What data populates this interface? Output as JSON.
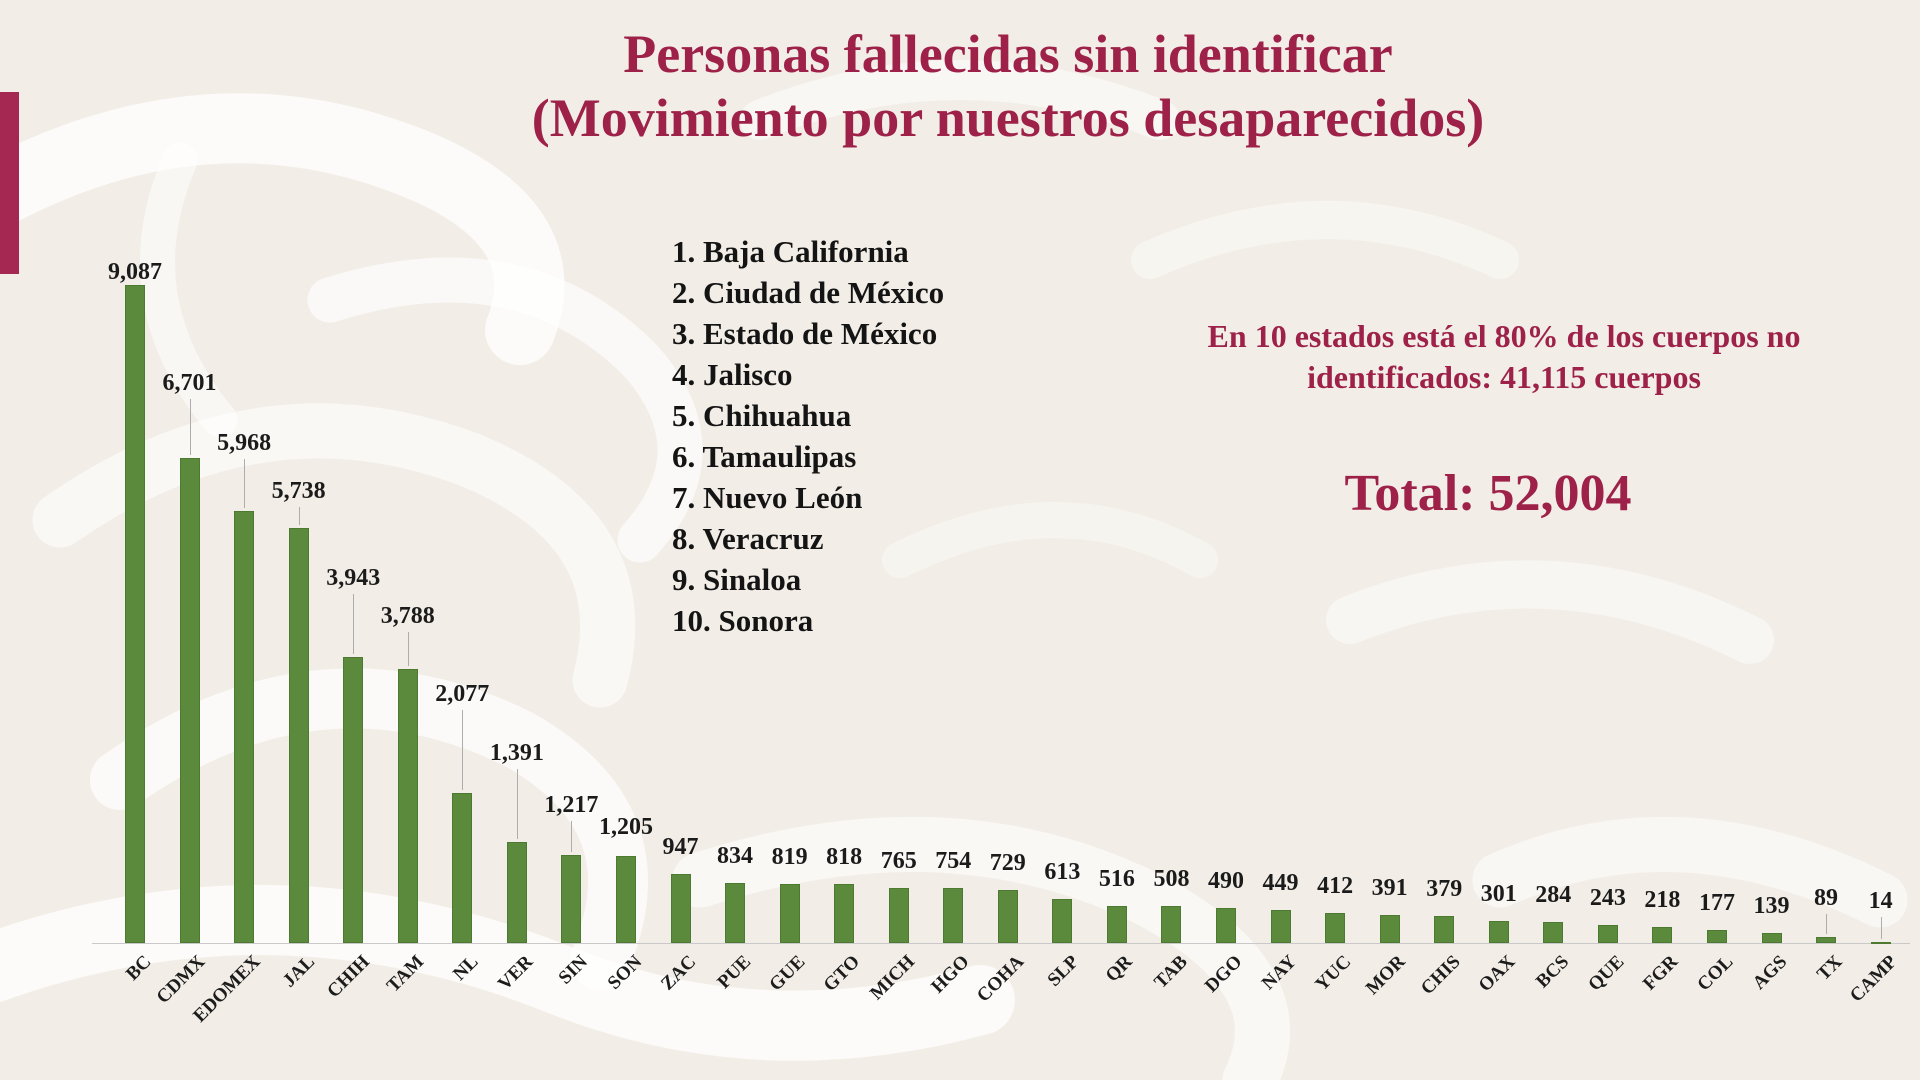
{
  "title": {
    "line1": "Personas fallecidas sin identificar",
    "line2": "(Movimiento por nuestros desaparecidos)"
  },
  "top_states_list": {
    "items": [
      "1. Baja California",
      "2. Ciudad de México",
      "3. Estado de México",
      "4. Jalisco",
      "5. Chihuahua",
      "6. Tamaulipas",
      "7. Nuevo León",
      "8. Veracruz",
      "9. Sinaloa",
      "10. Sonora"
    ]
  },
  "note": {
    "line1": "En 10 estados está el 80% de los cuerpos no",
    "line2": "identificados: 41,115 cuerpos"
  },
  "total": {
    "label": "Total: 52,004"
  },
  "colors": {
    "maroon_text": "#9d2149",
    "accent_strip": "#a42852",
    "bar_green": "#5b8a3c",
    "label_black": "#1b1b1b",
    "leader_gray": "#adadad",
    "axis_gray": "#c9c9c9",
    "background": "#f2eee7"
  },
  "chart_data": {
    "type": "bar",
    "title": "Personas fallecidas sin identificar (Movimiento por nuestros desaparecidos)",
    "categories": [
      "BC",
      "CDMX",
      "EDOMEX",
      "JAL",
      "CHIH",
      "TAM",
      "NL",
      "VER",
      "SIN",
      "SON",
      "ZAC",
      "PUE",
      "GUE",
      "GTO",
      "MICH",
      "HGO",
      "COHA",
      "SLP",
      "QR",
      "TAB",
      "DGO",
      "NAY",
      "YUC",
      "MOR",
      "CHIS",
      "OAX",
      "BCS",
      "QUE",
      "FGR",
      "COL",
      "AGS",
      "TX",
      "CAMP"
    ],
    "values": [
      9087,
      6701,
      5968,
      5738,
      3943,
      3788,
      2077,
      1391,
      1217,
      1205,
      947,
      834,
      819,
      818,
      765,
      754,
      729,
      613,
      516,
      508,
      490,
      449,
      412,
      391,
      379,
      301,
      284,
      243,
      218,
      177,
      139,
      89,
      14
    ],
    "value_labels": [
      "9,087",
      "6,701",
      "5,968",
      "5,738",
      "3,943",
      "3,788",
      "2,077",
      "1,391",
      "1,217",
      "1,205",
      "947",
      "834",
      "819",
      "818",
      "765",
      "754",
      "729",
      "613",
      "516",
      "508",
      "490",
      "449",
      "412",
      "391",
      "379",
      "301",
      "284",
      "243",
      "218",
      "177",
      "139",
      "89",
      "14"
    ],
    "xlabel": "",
    "ylabel": "",
    "ylim": [
      0,
      9500
    ],
    "grid": false,
    "legend_position": "none",
    "data_labels": true,
    "total": 52004
  }
}
